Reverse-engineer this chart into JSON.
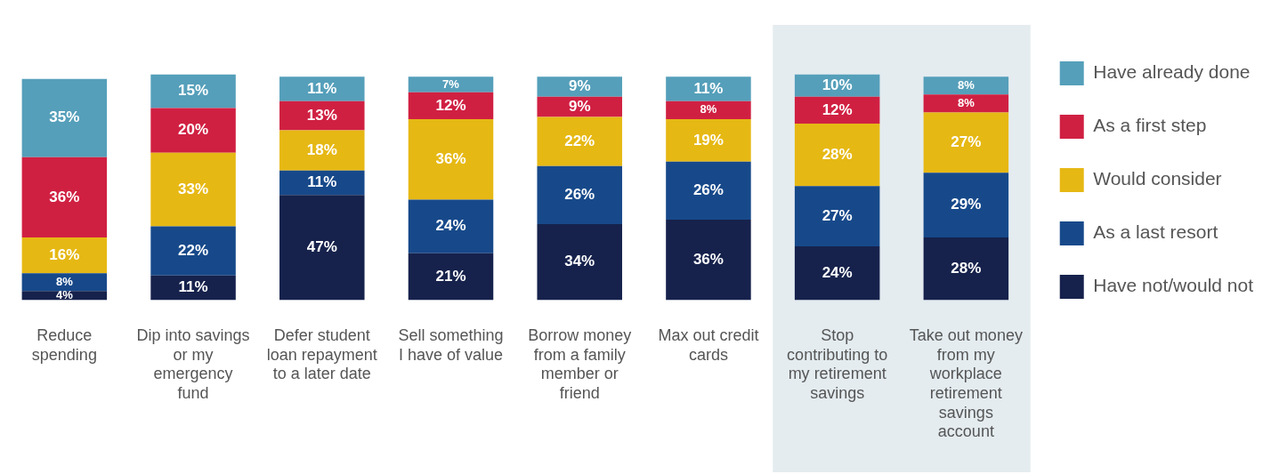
{
  "chart_data": {
    "type": "bar",
    "stacked": true,
    "tick_labels": "x",
    "grid": false,
    "legend": "right",
    "categories": [
      "Reduce spending",
      "Dip into savings or my emergency fund",
      "Defer student loan repayment to a later date",
      "Sell something I have of value",
      "Borrow money from a family member or friend",
      "Max out credit cards",
      "Stop contributing to my retirement savings",
      "Take out money from my workplace retirement savings account"
    ],
    "series": [
      {
        "name": "Have not/would not",
        "color": "#16224c",
        "values": [
          4,
          11,
          47,
          21,
          34,
          36,
          24,
          28
        ],
        "value_labels": [
          "4%",
          "11%",
          "47%",
          "21%",
          "34%",
          "36%",
          "24%",
          "28%"
        ]
      },
      {
        "name": "As a last resort",
        "color": "#17498a",
        "values": [
          8,
          22,
          11,
          24,
          26,
          26,
          27,
          29
        ],
        "value_labels": [
          "8%",
          "22%",
          "11%",
          "24%",
          "26%",
          "26%",
          "27%",
          "29%"
        ]
      },
      {
        "name": "Would consider",
        "color": "#e6b814",
        "values": [
          16,
          33,
          18,
          36,
          22,
          19,
          28,
          27
        ],
        "value_labels": [
          "16%",
          "33%",
          "18%",
          "36%",
          "22%",
          "19%",
          "28%",
          "27%"
        ]
      },
      {
        "name": "As a first step",
        "color": "#d02042",
        "values": [
          36,
          20,
          13,
          12,
          9,
          8,
          12,
          8
        ],
        "value_labels": [
          "36%",
          "20%",
          "13%",
          "12%",
          "9%",
          "8%",
          "12%",
          "8%"
        ]
      },
      {
        "name": "Have already done",
        "color": "#559fba",
        "values": [
          35,
          15,
          11,
          7,
          9,
          11,
          10,
          8
        ],
        "value_labels": [
          "35%",
          "15%",
          "11%",
          "7%",
          "9%",
          "11%",
          "10%",
          "8%"
        ]
      }
    ],
    "bands": [
      {
        "axis": "x",
        "from": "Stop contributing to my retirement savings",
        "to": "Take out money from my workplace retirement savings account",
        "color": "#e4ecf0"
      }
    ]
  }
}
